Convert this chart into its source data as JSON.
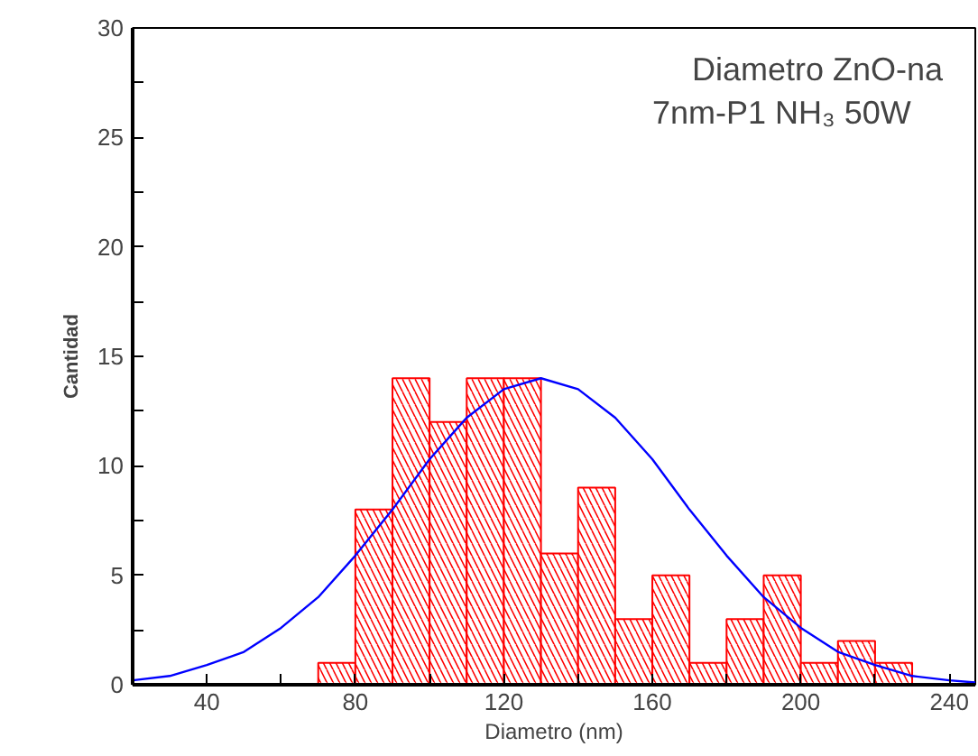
{
  "chart_data": {
    "type": "histogram",
    "xlabel": "Diametro (nm)",
    "ylabel": "Cantidad",
    "annotations": [
      "Diametro ZnO-na",
      "7nm-P1 NH₃ 50W"
    ],
    "bins": [
      70,
      80,
      90,
      100,
      110,
      120,
      130,
      140,
      150,
      160,
      170,
      180,
      190,
      200,
      210,
      220,
      230
    ],
    "values": [
      1,
      8,
      14,
      12,
      14,
      14,
      6,
      9,
      3,
      5,
      1,
      3,
      5,
      1,
      2,
      1
    ],
    "color": "#ff0000",
    "series": [
      {
        "type": "line",
        "color": "#0000ff",
        "x": [
          20,
          30,
          40,
          50,
          60,
          70,
          80,
          90,
          100,
          110,
          120,
          130,
          140,
          150,
          160,
          170,
          180,
          190,
          200,
          210,
          220,
          230,
          240,
          247
        ],
        "values": [
          0.2,
          0.4,
          0.9,
          1.5,
          2.6,
          4.0,
          5.9,
          8.0,
          10.3,
          12.2,
          13.5,
          14.0,
          13.5,
          12.2,
          10.3,
          8.0,
          5.9,
          4.0,
          2.6,
          1.5,
          0.9,
          0.4,
          0.2,
          0.1
        ]
      }
    ],
    "xlim": [
      20,
      247
    ],
    "ylim": [
      0,
      30
    ],
    "xticks": [
      {
        "value": 20,
        "label": null
      },
      40,
      {
        "value": 60,
        "label": null
      },
      80,
      {
        "value": 100,
        "label": null
      },
      120,
      {
        "value": 140,
        "label": null
      },
      160,
      {
        "value": 180,
        "label": null
      },
      200,
      {
        "value": 220,
        "label": null
      },
      240
    ],
    "yticks": [
      0,
      {
        "value": 2.5,
        "label": null
      },
      5,
      {
        "value": 7.5,
        "label": null
      },
      10,
      {
        "value": 12.5,
        "label": null
      },
      15,
      {
        "value": 17.5,
        "label": null
      },
      20,
      {
        "value": 22.5,
        "label": null
      },
      25,
      {
        "value": 27.5,
        "label": null
      },
      30
    ],
    "grid": false
  }
}
